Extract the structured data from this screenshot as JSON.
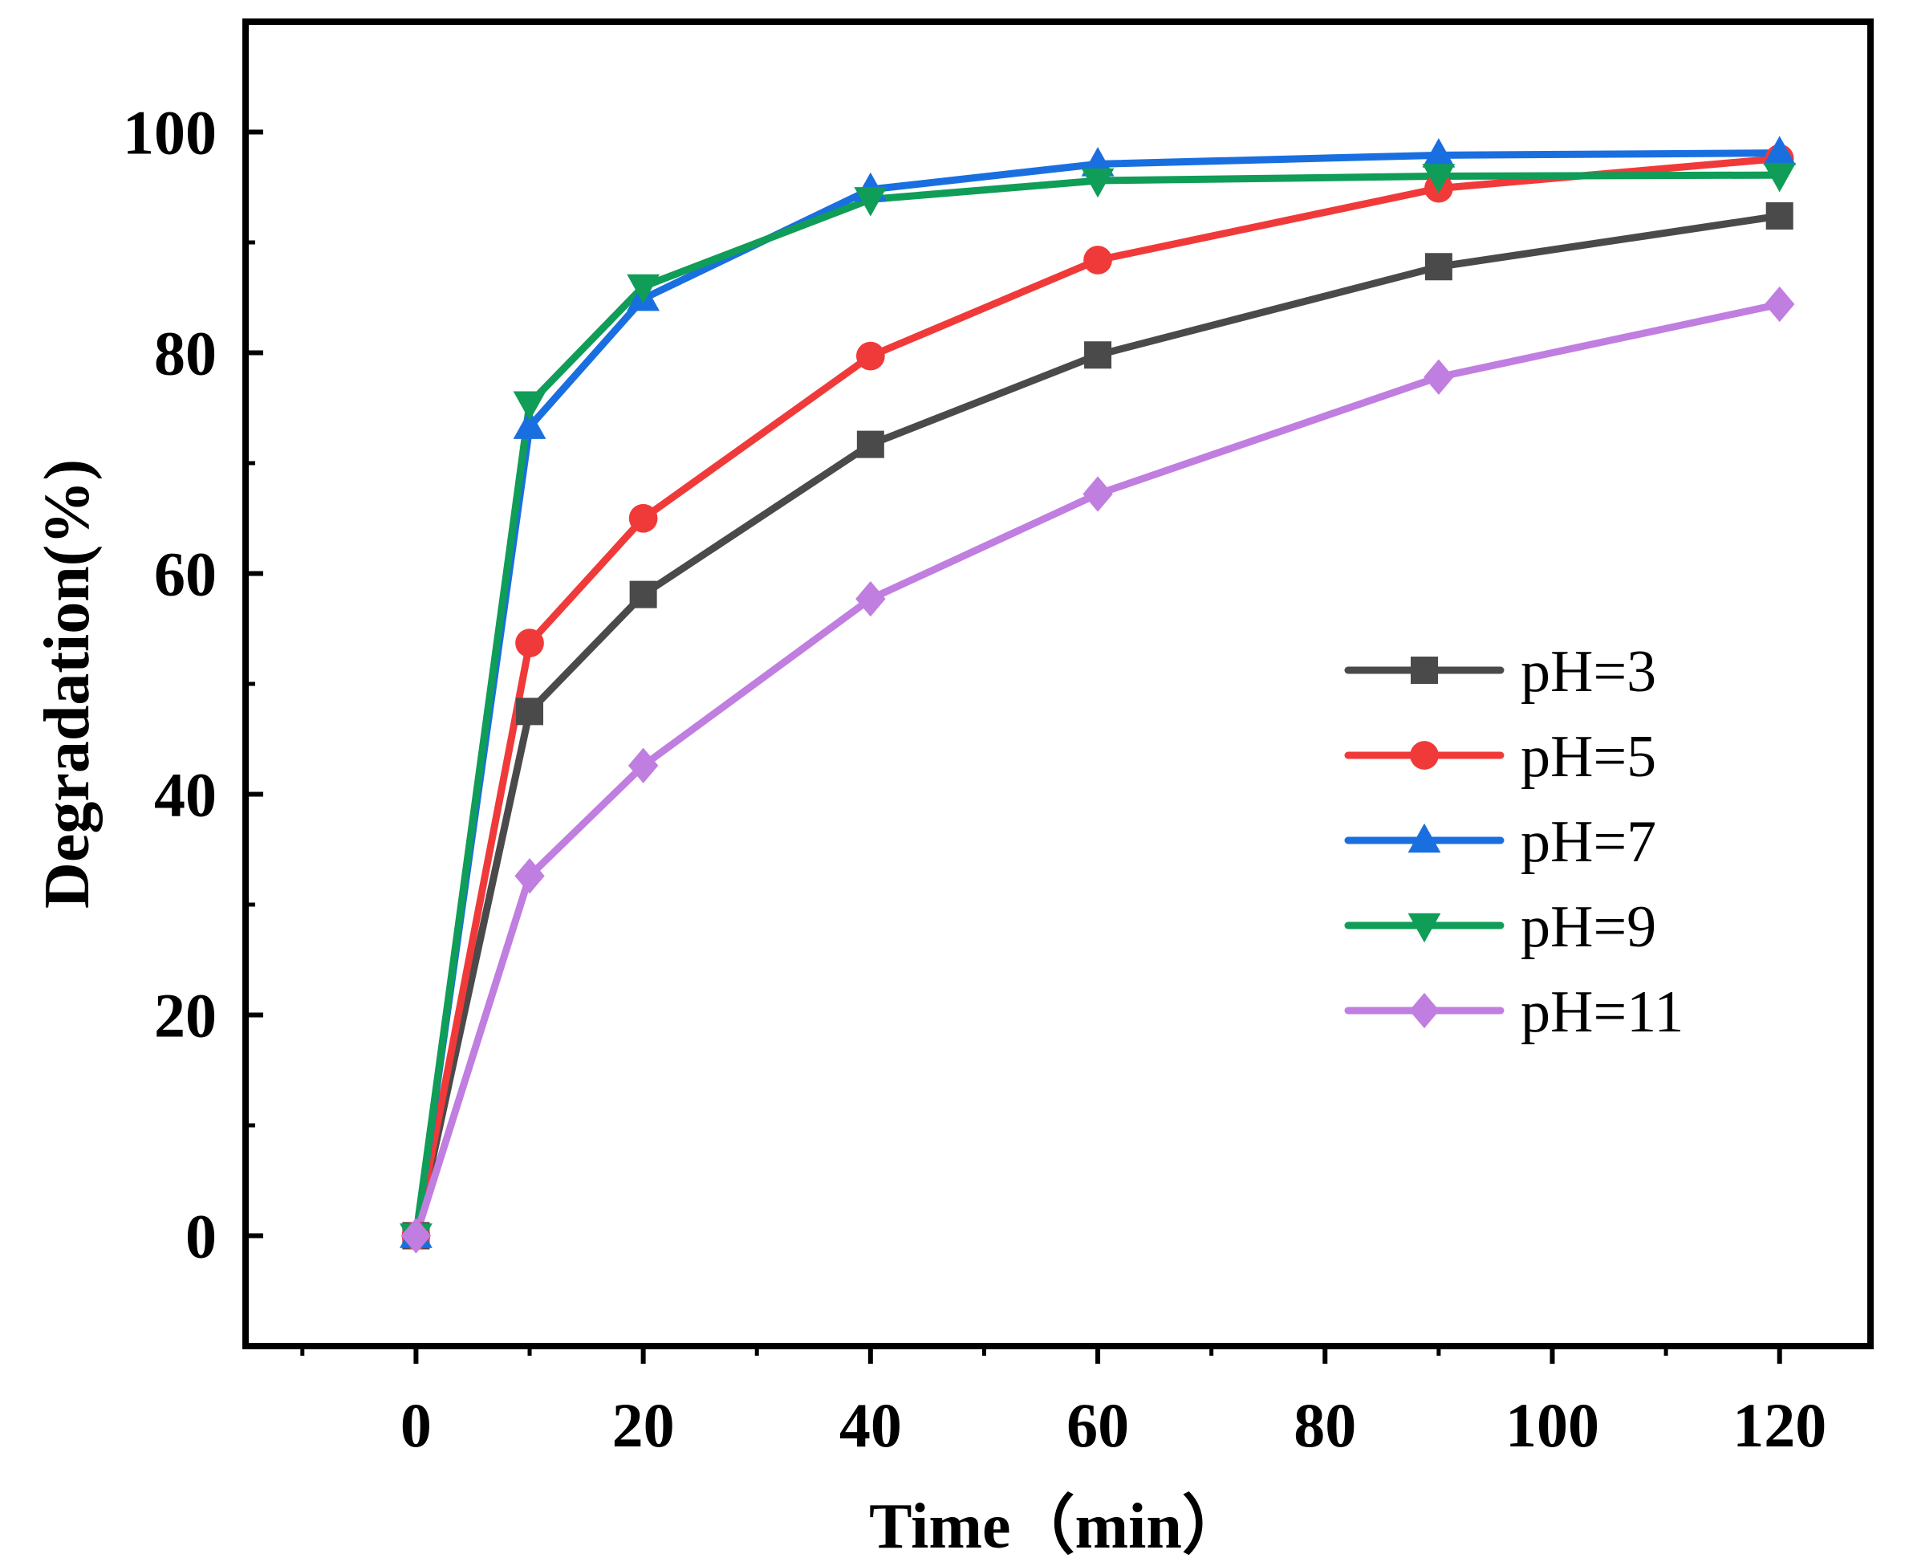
{
  "chart_data": {
    "type": "line",
    "title": "",
    "xlabel": "Time（min）",
    "ylabel": "Degradation(%)",
    "xlim": [
      -15,
      128
    ],
    "ylim": [
      -10,
      110
    ],
    "xticks": [
      0,
      20,
      40,
      60,
      80,
      100,
      120
    ],
    "yticks": [
      0,
      20,
      40,
      60,
      80,
      100
    ],
    "x": [
      0,
      10,
      20,
      40,
      60,
      90,
      120
    ],
    "legend_position": "right-middle",
    "series": [
      {
        "name": "pH=3",
        "color": "#4a4a4a",
        "marker": "square",
        "values": [
          0,
          47.5,
          58.1,
          71.7,
          79.8,
          87.8,
          92.4
        ]
      },
      {
        "name": "pH=5",
        "color": "#f03a3a",
        "marker": "circle",
        "values": [
          0,
          53.7,
          65.0,
          79.7,
          88.4,
          94.9,
          97.6
        ]
      },
      {
        "name": "pH=7",
        "color": "#1a6fe0",
        "marker": "triangle-up",
        "values": [
          0,
          73.3,
          84.9,
          94.8,
          97.1,
          97.9,
          98.1
        ]
      },
      {
        "name": "pH=9",
        "color": "#0f9d58",
        "marker": "triangle-down",
        "values": [
          0,
          75.4,
          86.0,
          93.9,
          95.6,
          96.0,
          96.1
        ]
      },
      {
        "name": "pH=11",
        "color": "#c07ee0",
        "marker": "diamond",
        "values": [
          0,
          32.6,
          42.6,
          57.7,
          67.2,
          77.8,
          84.4
        ]
      }
    ]
  }
}
